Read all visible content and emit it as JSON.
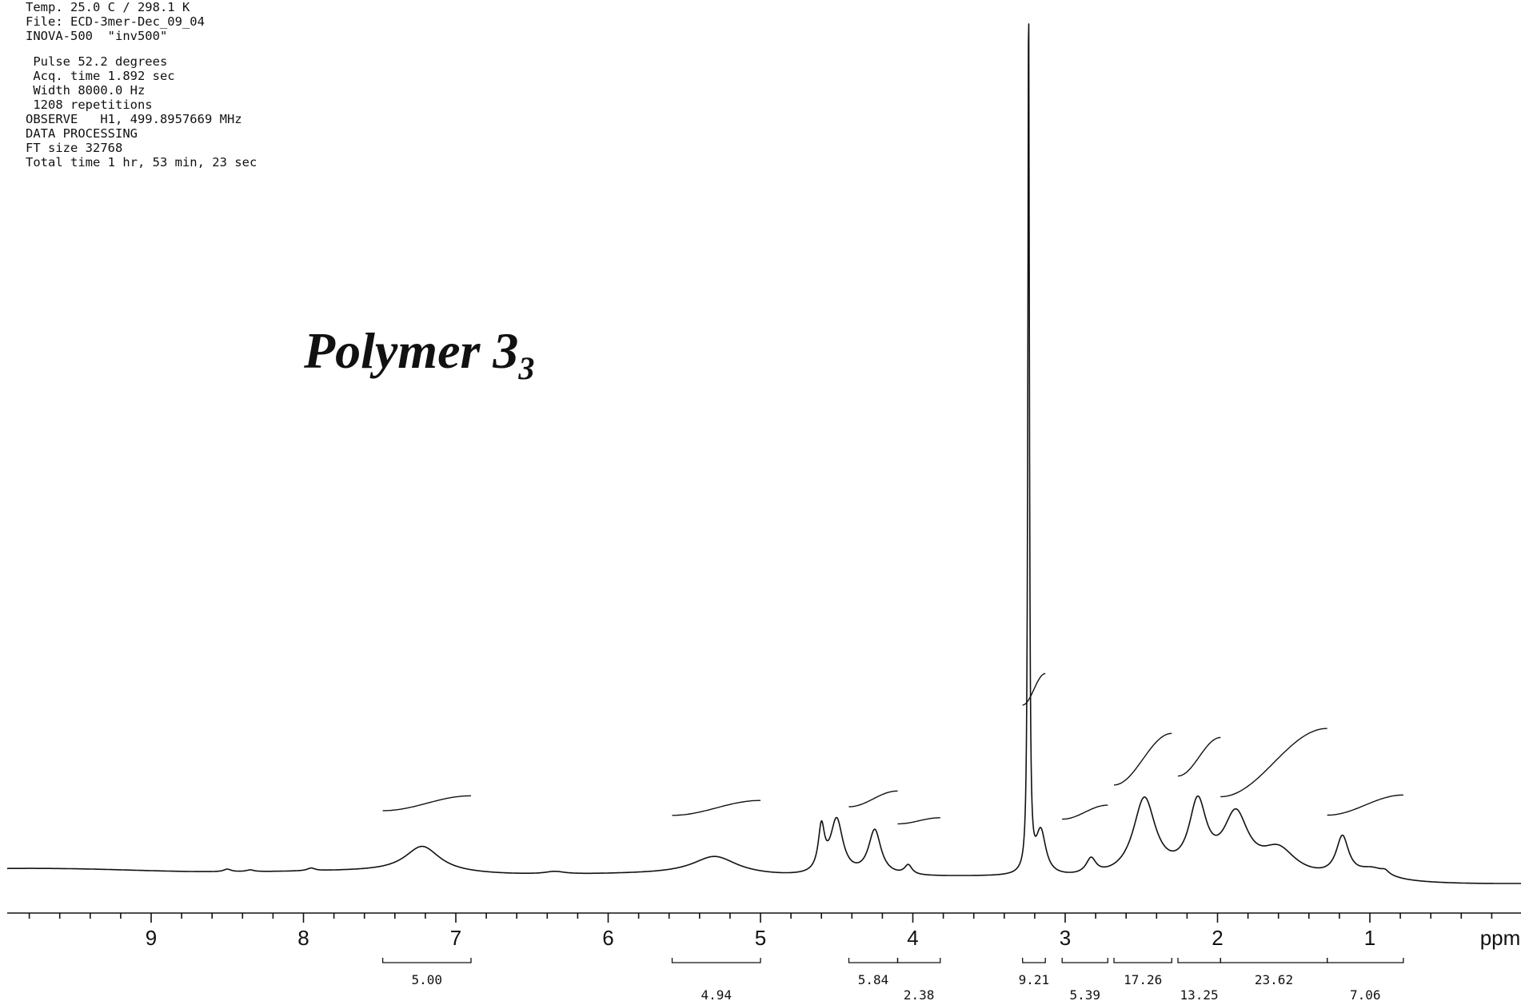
{
  "parameters": [
    "Temp. 25.0 C / 298.1 K",
    "File: ECD-3mer-Dec_09_04",
    "INOVA-500  \"inv500\"",
    "",
    " Pulse 52.2 degrees",
    " Acq. time 1.892 sec",
    " Width 8000.0 Hz",
    " 1208 repetitions",
    "OBSERVE   H1, 499.8957669 MHz",
    "DATA PROCESSING",
    "FT size 32768",
    "Total time 1 hr, 53 min, 23 sec"
  ],
  "title": {
    "main": "Polymer 3",
    "subscript": "3"
  },
  "chart_data": {
    "type": "line",
    "xlabel": "ppm",
    "xlim": [
      10.0,
      -0.2
    ],
    "x_reversed": true,
    "ticks": [
      9,
      8,
      7,
      6,
      5,
      4,
      3,
      2,
      1
    ],
    "tick_labels": [
      "9",
      "8",
      "7",
      "6",
      "5",
      "4",
      "3",
      "2",
      "1"
    ],
    "peaks": [
      {
        "ppm": 8.5,
        "height": 0.003,
        "width": 0.03
      },
      {
        "ppm": 8.35,
        "height": 0.002,
        "width": 0.03
      },
      {
        "ppm": 7.95,
        "height": 0.003,
        "width": 0.03
      },
      {
        "ppm": 7.22,
        "height": 0.03,
        "width": 0.14
      },
      {
        "ppm": 6.35,
        "height": 0.003,
        "width": 0.08
      },
      {
        "ppm": 5.3,
        "height": 0.021,
        "width": 0.18
      },
      {
        "ppm": 4.6,
        "height": 0.05,
        "width": 0.025
      },
      {
        "ppm": 4.5,
        "height": 0.063,
        "width": 0.05
      },
      {
        "ppm": 4.25,
        "height": 0.052,
        "width": 0.05
      },
      {
        "ppm": 4.03,
        "height": 0.011,
        "width": 0.03
      },
      {
        "ppm": 3.24,
        "height": 1.0,
        "width": 0.006
      },
      {
        "ppm": 3.16,
        "height": 0.05,
        "width": 0.04
      },
      {
        "ppm": 2.83,
        "height": 0.018,
        "width": 0.04
      },
      {
        "ppm": 2.48,
        "height": 0.09,
        "width": 0.09
      },
      {
        "ppm": 2.13,
        "height": 0.08,
        "width": 0.07
      },
      {
        "ppm": 1.88,
        "height": 0.068,
        "width": 0.1
      },
      {
        "ppm": 1.6,
        "height": 0.03,
        "width": 0.14
      },
      {
        "ppm": 1.18,
        "height": 0.045,
        "width": 0.05
      },
      {
        "ppm": 0.98,
        "height": 0.012,
        "width": 0.12
      },
      {
        "ppm": 0.9,
        "height": 0.004,
        "width": 0.03
      }
    ],
    "integrals": [
      {
        "from": 7.48,
        "to": 6.9,
        "value": "5.00",
        "rise": 0.017
      },
      {
        "from": 5.58,
        "to": 5.0,
        "value": "4.94",
        "rise": 0.017
      },
      {
        "from": 4.42,
        "to": 4.1,
        "value": "5.84",
        "rise": 0.018
      },
      {
        "from": 4.1,
        "to": 3.82,
        "value": "2.38",
        "rise": 0.007
      },
      {
        "from": 3.28,
        "to": 3.13,
        "value": "9.21",
        "rise": 0.036
      },
      {
        "from": 3.02,
        "to": 2.72,
        "value": "5.39",
        "rise": 0.016
      },
      {
        "from": 2.68,
        "to": 2.3,
        "value": "17.26",
        "rise": 0.059
      },
      {
        "from": 2.26,
        "to": 1.98,
        "value": "13.25",
        "rise": 0.044
      },
      {
        "from": 1.98,
        "to": 1.28,
        "value": "23.62",
        "rise": 0.078
      },
      {
        "from": 1.28,
        "to": 0.78,
        "value": "7.06",
        "rise": 0.023
      }
    ]
  }
}
